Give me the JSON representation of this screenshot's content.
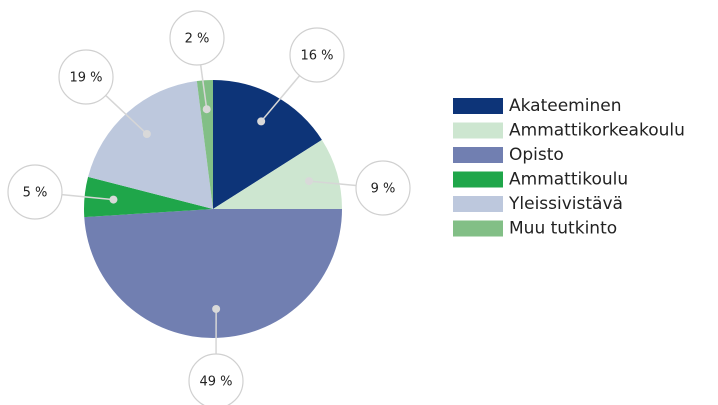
{
  "chart_data": {
    "type": "pie",
    "categories": [
      "Akateeminen",
      "Ammattikorkeakoulu",
      "Opisto",
      "Ammattikoulu",
      "Yleissivistävä",
      "Muu tutkinto"
    ],
    "values": [
      16,
      9,
      49,
      5,
      19,
      2
    ],
    "value_labels": [
      "16 %",
      "9 %",
      "49 %",
      "5 %",
      "19 %",
      "2 %"
    ],
    "colors": [
      "#0d3478",
      "#cde6d0",
      "#717fb1",
      "#1fa64a",
      "#bdc8dd",
      "#82bf86"
    ],
    "legend": "right"
  }
}
